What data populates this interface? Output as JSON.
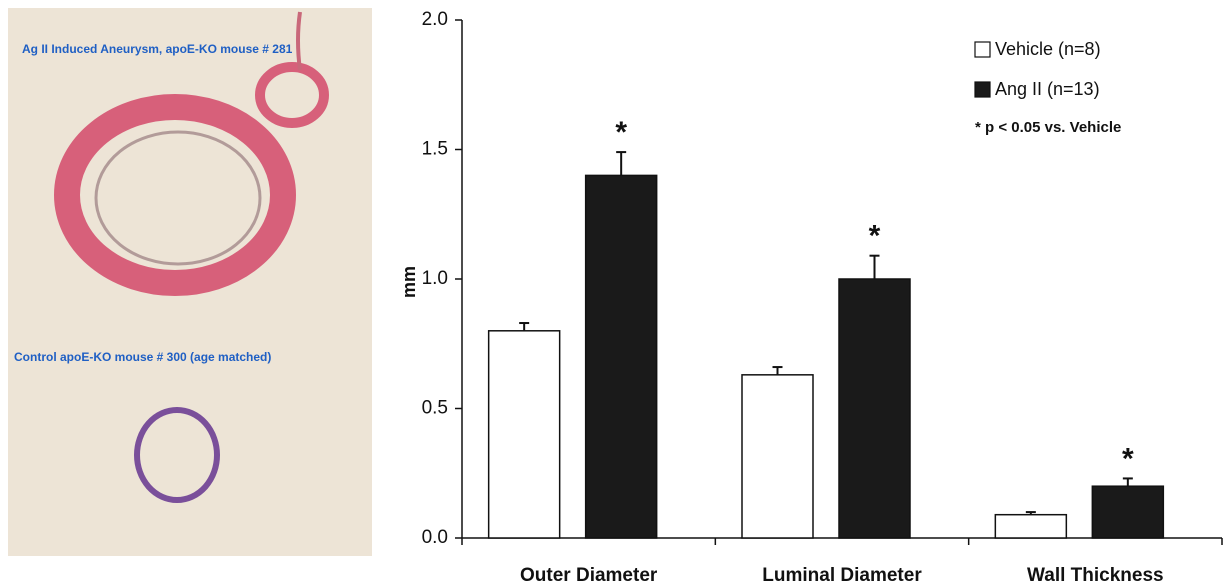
{
  "image_panel": {
    "labels": [
      "Ag II Induced Aneurysm, apoE-KO mouse # 281",
      "Control  apoE-KO mouse # 300 (age matched)"
    ]
  },
  "chart_data": {
    "type": "bar",
    "ylabel": "mm",
    "categories": [
      "Outer Diameter",
      "Luminal Diameter",
      "Wall Thickness"
    ],
    "series": [
      {
        "name": "Vehicle (n=8)",
        "color": "#ffffff",
        "values": [
          0.8,
          0.63,
          0.09
        ],
        "errors": [
          0.03,
          0.03,
          0.01
        ]
      },
      {
        "name": "Ang II (n=13)",
        "color": "#1a1a1a",
        "values": [
          1.4,
          1.0,
          0.2
        ],
        "errors": [
          0.09,
          0.09,
          0.03
        ]
      }
    ],
    "significance_marks": [
      "*",
      "*",
      "*"
    ],
    "note": "* p < 0.05 vs. Vehicle",
    "ylim": [
      0,
      2
    ],
    "yticks": [
      {
        "value": 0,
        "label": "0.0"
      },
      0.5,
      {
        "value": 1,
        "label": "1.0"
      },
      1.5,
      {
        "value": 2,
        "label": "2.0"
      }
    ],
    "legend": "top-right"
  }
}
